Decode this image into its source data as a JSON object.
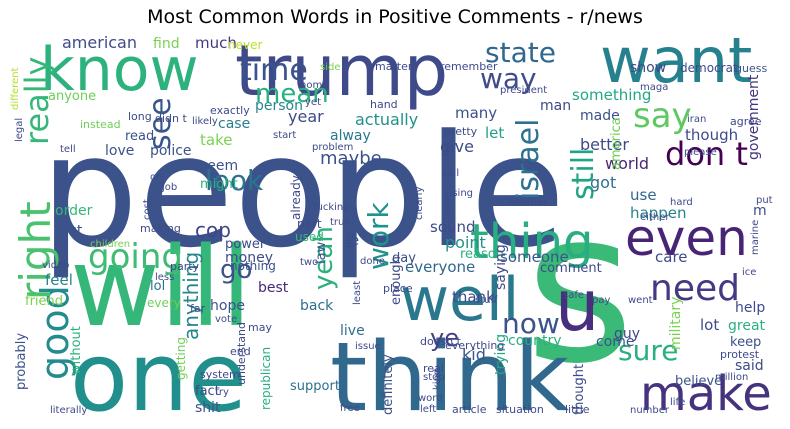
{
  "chart_data": {
    "type": "wordcloud",
    "title": "Most Common Words in Positive Comments - r/news",
    "words": [
      {
        "text": "people",
        "color": "#3b528b"
      },
      {
        "text": "will",
        "color": "#35b779"
      },
      {
        "text": "one",
        "color": "#21908d"
      },
      {
        "text": "s",
        "color": "#3aba76"
      },
      {
        "text": "think",
        "color": "#31688e"
      },
      {
        "text": "trump",
        "color": "#3e4a89"
      },
      {
        "text": "know",
        "color": "#2db27d"
      },
      {
        "text": "want",
        "color": "#26818e"
      },
      {
        "text": "thing",
        "color": "#28ae80"
      },
      {
        "text": "even",
        "color": "#482475"
      },
      {
        "text": "well",
        "color": "#2a788e"
      },
      {
        "text": "u",
        "color": "#472f7d"
      },
      {
        "text": "make",
        "color": "#46337e"
      },
      {
        "text": "good",
        "color": "#238a8d"
      },
      {
        "text": "right",
        "color": "#4ac16d"
      },
      {
        "text": "need",
        "color": "#443983"
      },
      {
        "text": "going",
        "color": "#3fbc73"
      },
      {
        "text": "israel",
        "color": "#2c718e"
      },
      {
        "text": "still",
        "color": "#20a486"
      },
      {
        "text": "say",
        "color": "#5ec962"
      },
      {
        "text": "state",
        "color": "#31688e"
      },
      {
        "text": "way",
        "color": "#3e4c8a"
      },
      {
        "text": "time",
        "color": "#3b528b"
      },
      {
        "text": "don t",
        "color": "#440154"
      },
      {
        "text": "look",
        "color": "#2c718e"
      },
      {
        "text": "see",
        "color": "#39568c"
      },
      {
        "text": "mean",
        "color": "#2ab07f"
      },
      {
        "text": "really",
        "color": "#35b779"
      },
      {
        "text": "now",
        "color": "#3a538b"
      },
      {
        "text": "sure",
        "color": "#2ab07f"
      },
      {
        "text": "work",
        "color": "#20928c"
      },
      {
        "text": "yeah",
        "color": "#2ab07f"
      },
      {
        "text": "go",
        "color": "#3b528b"
      },
      {
        "text": "ye",
        "color": "#433e85"
      },
      {
        "text": "cop",
        "color": "#404688"
      },
      {
        "text": "anything",
        "color": "#25848e"
      },
      {
        "text": "american",
        "color": "#3e4c8a"
      },
      {
        "text": "find",
        "color": "#7ad151"
      },
      {
        "text": "much",
        "color": "#453781"
      },
      {
        "text": "never",
        "color": "#bddf26"
      },
      {
        "text": "year",
        "color": "#3e4a89"
      },
      {
        "text": "actually",
        "color": "#21918c"
      },
      {
        "text": "many",
        "color": "#3b528b"
      },
      {
        "text": "let",
        "color": "#1fa287"
      },
      {
        "text": "something",
        "color": "#22a884"
      },
      {
        "text": "made",
        "color": "#3b528b"
      },
      {
        "text": "man",
        "color": "#3e4a89"
      },
      {
        "text": "government",
        "color": "#46327e"
      },
      {
        "text": "case",
        "color": "#287d8e"
      },
      {
        "text": "person",
        "color": "#25858e"
      },
      {
        "text": "alway",
        "color": "#2a788e"
      },
      {
        "text": "maybe",
        "color": "#3b528b"
      },
      {
        "text": "give",
        "color": "#3e4a89"
      },
      {
        "text": "better",
        "color": "#3e4a89"
      },
      {
        "text": "world",
        "color": "#482878"
      },
      {
        "text": "got",
        "color": "#2c718e"
      },
      {
        "text": "use",
        "color": "#31688e"
      },
      {
        "text": "happen",
        "color": "#26828e"
      },
      {
        "text": "point",
        "color": "#21918c"
      },
      {
        "text": "someone",
        "color": "#39568c"
      },
      {
        "text": "everyone",
        "color": "#31688e"
      },
      {
        "text": "comment",
        "color": "#3e4a89"
      },
      {
        "text": "care",
        "color": "#3e4a89"
      },
      {
        "text": "sound",
        "color": "#3e4a89"
      },
      {
        "text": "reason",
        "color": "#2ab07f"
      },
      {
        "text": "saying",
        "color": "#3e4a89"
      },
      {
        "text": "day",
        "color": "#3e4a89"
      },
      {
        "text": "thank",
        "color": "#3e4a89"
      },
      {
        "text": "country",
        "color": "#2ab07f"
      },
      {
        "text": "come",
        "color": "#3b528b"
      },
      {
        "text": "kid",
        "color": "#39568c"
      },
      {
        "text": "trying",
        "color": "#22a884"
      },
      {
        "text": "take",
        "color": "#7ad151"
      },
      {
        "text": "seem",
        "color": "#3b528b"
      },
      {
        "text": "might",
        "color": "#2ab07f"
      },
      {
        "text": "love",
        "color": "#3b528b"
      },
      {
        "text": "police",
        "color": "#3b528b"
      },
      {
        "text": "read",
        "color": "#3b528b"
      },
      {
        "text": "anyone",
        "color": "#6ece58"
      },
      {
        "text": "order",
        "color": "#35b779"
      },
      {
        "text": "first",
        "color": "#3b528b"
      },
      {
        "text": "feel",
        "color": "#25848e"
      },
      {
        "text": "friend",
        "color": "#7ad151"
      },
      {
        "text": "lol",
        "color": "#2c718e"
      },
      {
        "text": "every",
        "color": "#6ece58"
      },
      {
        "text": "hope",
        "color": "#3b528b"
      },
      {
        "text": "best",
        "color": "#482878"
      },
      {
        "text": "back",
        "color": "#2c718e"
      },
      {
        "text": "live",
        "color": "#2c718e"
      },
      {
        "text": "money",
        "color": "#3e4a89"
      },
      {
        "text": "power",
        "color": "#3e4a89"
      },
      {
        "text": "law",
        "color": "#3b528b"
      },
      {
        "text": "re",
        "color": "#3b528b"
      },
      {
        "text": "part",
        "color": "#3e4a89"
      },
      {
        "text": "used",
        "color": "#35b779"
      },
      {
        "text": "nothing",
        "color": "#3b528b"
      },
      {
        "text": "already",
        "color": "#3e4a89"
      },
      {
        "text": "probably",
        "color": "#3b528b"
      },
      {
        "text": "without",
        "color": "#2ab07f"
      },
      {
        "text": "support",
        "color": "#2c718e"
      },
      {
        "text": "shit",
        "color": "#3b528b"
      },
      {
        "text": "fact",
        "color": "#3e4a89"
      },
      {
        "text": "definitely",
        "color": "#3b528b"
      },
      {
        "text": "republican",
        "color": "#2ab07f"
      },
      {
        "text": "military",
        "color": "#7ad151"
      },
      {
        "text": "help",
        "color": "#3e4a89"
      },
      {
        "text": "lot",
        "color": "#3e4a89"
      },
      {
        "text": "great",
        "color": "#2ab07f"
      },
      {
        "text": "guy",
        "color": "#3e4a89"
      },
      {
        "text": "keep",
        "color": "#3b528b"
      },
      {
        "text": "said",
        "color": "#3e4a89"
      },
      {
        "text": "believe",
        "color": "#3b528b"
      },
      {
        "text": "thought",
        "color": "#3e4a89"
      },
      {
        "text": "enough",
        "color": "#3e4a89"
      },
      {
        "text": "getting",
        "color": "#6ece58"
      },
      {
        "text": "m",
        "color": "#3e4a89"
      },
      {
        "text": "though",
        "color": "#3e4a89"
      },
      {
        "text": "america",
        "color": "#6ece58"
      },
      {
        "text": "show",
        "color": "#3e4a89"
      },
      {
        "text": "democrat",
        "color": "#3e4a89"
      },
      {
        "text": "guess",
        "color": "#3b528b"
      },
      {
        "text": "matter",
        "color": "#3e4a89"
      },
      {
        "text": "remember",
        "color": "#3e4a89"
      },
      {
        "text": "maga",
        "color": "#3e4a89"
      },
      {
        "text": "side",
        "color": "#7ad151"
      },
      {
        "text": "home",
        "color": "#3e4a89"
      },
      {
        "text": "president",
        "color": "#3e4a89"
      },
      {
        "text": "yet",
        "color": "#3e4a89"
      },
      {
        "text": "hand",
        "color": "#3e4a89"
      },
      {
        "text": "exactly",
        "color": "#3e4a89"
      },
      {
        "text": "likely",
        "color": "#3e4a89"
      },
      {
        "text": "long",
        "color": "#3e4a89"
      },
      {
        "text": "didn t",
        "color": "#3e4a89"
      },
      {
        "text": "agree",
        "color": "#3e4a89"
      },
      {
        "text": "start",
        "color": "#3e4a89"
      },
      {
        "text": "problem",
        "color": "#3e4a89"
      },
      {
        "text": "fucking",
        "color": "#3e4a89"
      },
      {
        "text": "true",
        "color": "#3e4a89"
      },
      {
        "text": "clearly",
        "color": "#3e4a89"
      },
      {
        "text": "pretty",
        "color": "#3e4a89"
      },
      {
        "text": "call",
        "color": "#3e4a89"
      },
      {
        "text": "using",
        "color": "#3e4a89"
      },
      {
        "text": "new",
        "color": "#3e4a89"
      },
      {
        "text": "iran",
        "color": "#3e4a89"
      },
      {
        "text": "please",
        "color": "#3e4a89"
      },
      {
        "text": "hard",
        "color": "#3e4a89"
      },
      {
        "text": "either",
        "color": "#3e4a89"
      },
      {
        "text": "put",
        "color": "#3e4a89"
      },
      {
        "text": "marine",
        "color": "#3e4a89"
      },
      {
        "text": "ice",
        "color": "#3e4a89"
      },
      {
        "text": "pay",
        "color": "#3e4a89"
      },
      {
        "text": "went",
        "color": "#3e4a89"
      },
      {
        "text": "another",
        "color": "#3e4a89"
      },
      {
        "text": "legal",
        "color": "#3e4a89"
      },
      {
        "text": "different",
        "color": "#b5de2b"
      },
      {
        "text": "instead",
        "color": "#6ece58"
      },
      {
        "text": "tell",
        "color": "#3e4a89"
      },
      {
        "text": "oh",
        "color": "#3e4a89"
      },
      {
        "text": "job",
        "color": "#3e4a89"
      },
      {
        "text": "cost",
        "color": "#3e4a89"
      },
      {
        "text": "making",
        "color": "#3e4a89"
      },
      {
        "text": "children",
        "color": "#7ad151"
      },
      {
        "text": "video",
        "color": "#3e4a89"
      },
      {
        "text": "two",
        "color": "#3e4a89"
      },
      {
        "text": "big",
        "color": "#3e4a89"
      },
      {
        "text": "less",
        "color": "#3e4a89"
      },
      {
        "text": "party",
        "color": "#3e4a89"
      },
      {
        "text": "far",
        "color": "#3e4a89"
      },
      {
        "text": "vote",
        "color": "#3e4a89"
      },
      {
        "text": "least",
        "color": "#3e4a89"
      },
      {
        "text": "done",
        "color": "#3e4a89"
      },
      {
        "text": "place",
        "color": "#3e4a89"
      },
      {
        "text": "stuff",
        "color": "#3e4a89"
      },
      {
        "text": "safe",
        "color": "#3e4a89"
      },
      {
        "text": "issue",
        "color": "#3e4a89"
      },
      {
        "text": "doesn t",
        "color": "#3e4a89"
      },
      {
        "text": "everything",
        "color": "#3e4a89"
      },
      {
        "text": "real",
        "color": "#3e4a89"
      },
      {
        "text": "stop",
        "color": "#3e4a89"
      },
      {
        "text": "kind",
        "color": "#3e4a89"
      },
      {
        "text": "word",
        "color": "#3e4a89"
      },
      {
        "text": "left",
        "color": "#3e4a89"
      },
      {
        "text": "protest",
        "color": "#3e4a89"
      },
      {
        "text": "million",
        "color": "#3e4a89"
      },
      {
        "text": "may",
        "color": "#3e4a89"
      },
      {
        "text": "end",
        "color": "#3e4a89"
      },
      {
        "text": "understand",
        "color": "#3e4a89"
      },
      {
        "text": "system",
        "color": "#3e4a89"
      },
      {
        "text": "try",
        "color": "#3e4a89"
      },
      {
        "text": "free",
        "color": "#3e4a89"
      },
      {
        "text": "article",
        "color": "#3e4a89"
      },
      {
        "text": "situation",
        "color": "#3e4a89"
      },
      {
        "text": "little",
        "color": "#3e4a89"
      },
      {
        "text": "number",
        "color": "#3e4a89"
      },
      {
        "text": "life",
        "color": "#3e4a89"
      },
      {
        "text": "literally",
        "color": "#3e4a89"
      }
    ]
  }
}
